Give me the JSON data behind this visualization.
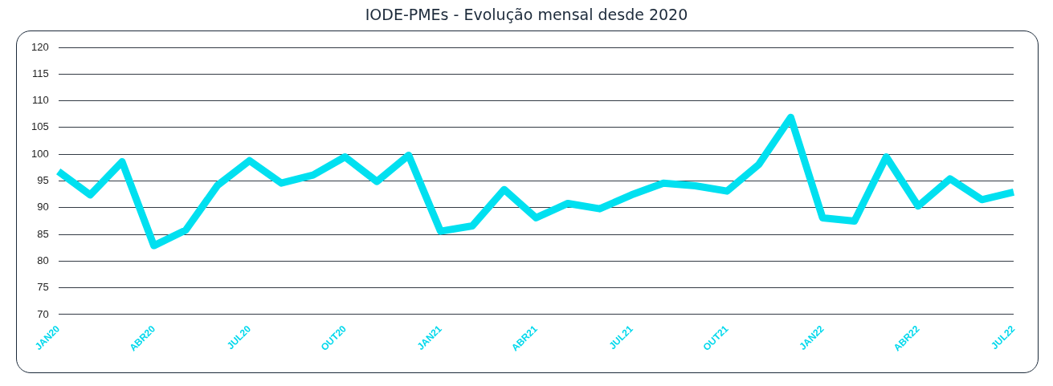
{
  "chart_data": {
    "type": "line",
    "title": "IODE-PMEs - Evolução mensal desde 2020",
    "categories": [
      "JAN20",
      null,
      null,
      "ABR20",
      null,
      null,
      "JUL20",
      null,
      null,
      "OUT20",
      null,
      null,
      "JAN21",
      null,
      null,
      "ABR21",
      null,
      null,
      "JUL21",
      null,
      null,
      "OUT21",
      null,
      null,
      "JAN22",
      null,
      null,
      "ABR22",
      null,
      null,
      "JUL22"
    ],
    "series": [
      {
        "color": "#00e0f0",
        "values": [
          96.8,
          92.4,
          98.6,
          82.9,
          85.8,
          94.2,
          98.8,
          94.6,
          96.1,
          99.5,
          94.9,
          99.8,
          85.6,
          86.6,
          93.4,
          88.1,
          90.8,
          89.8,
          92.4,
          94.6,
          94.1,
          93.1,
          98.1,
          106.9,
          88.1,
          87.5,
          99.5,
          90.3,
          95.4,
          91.5,
          92.9
        ]
      }
    ],
    "ylim": [
      70,
      120
    ],
    "yticks": [
      70,
      75,
      80,
      85,
      90,
      95,
      100,
      105,
      110,
      115,
      120
    ],
    "grid": "y",
    "legend": false,
    "marker": "none",
    "line_style": "solid"
  }
}
